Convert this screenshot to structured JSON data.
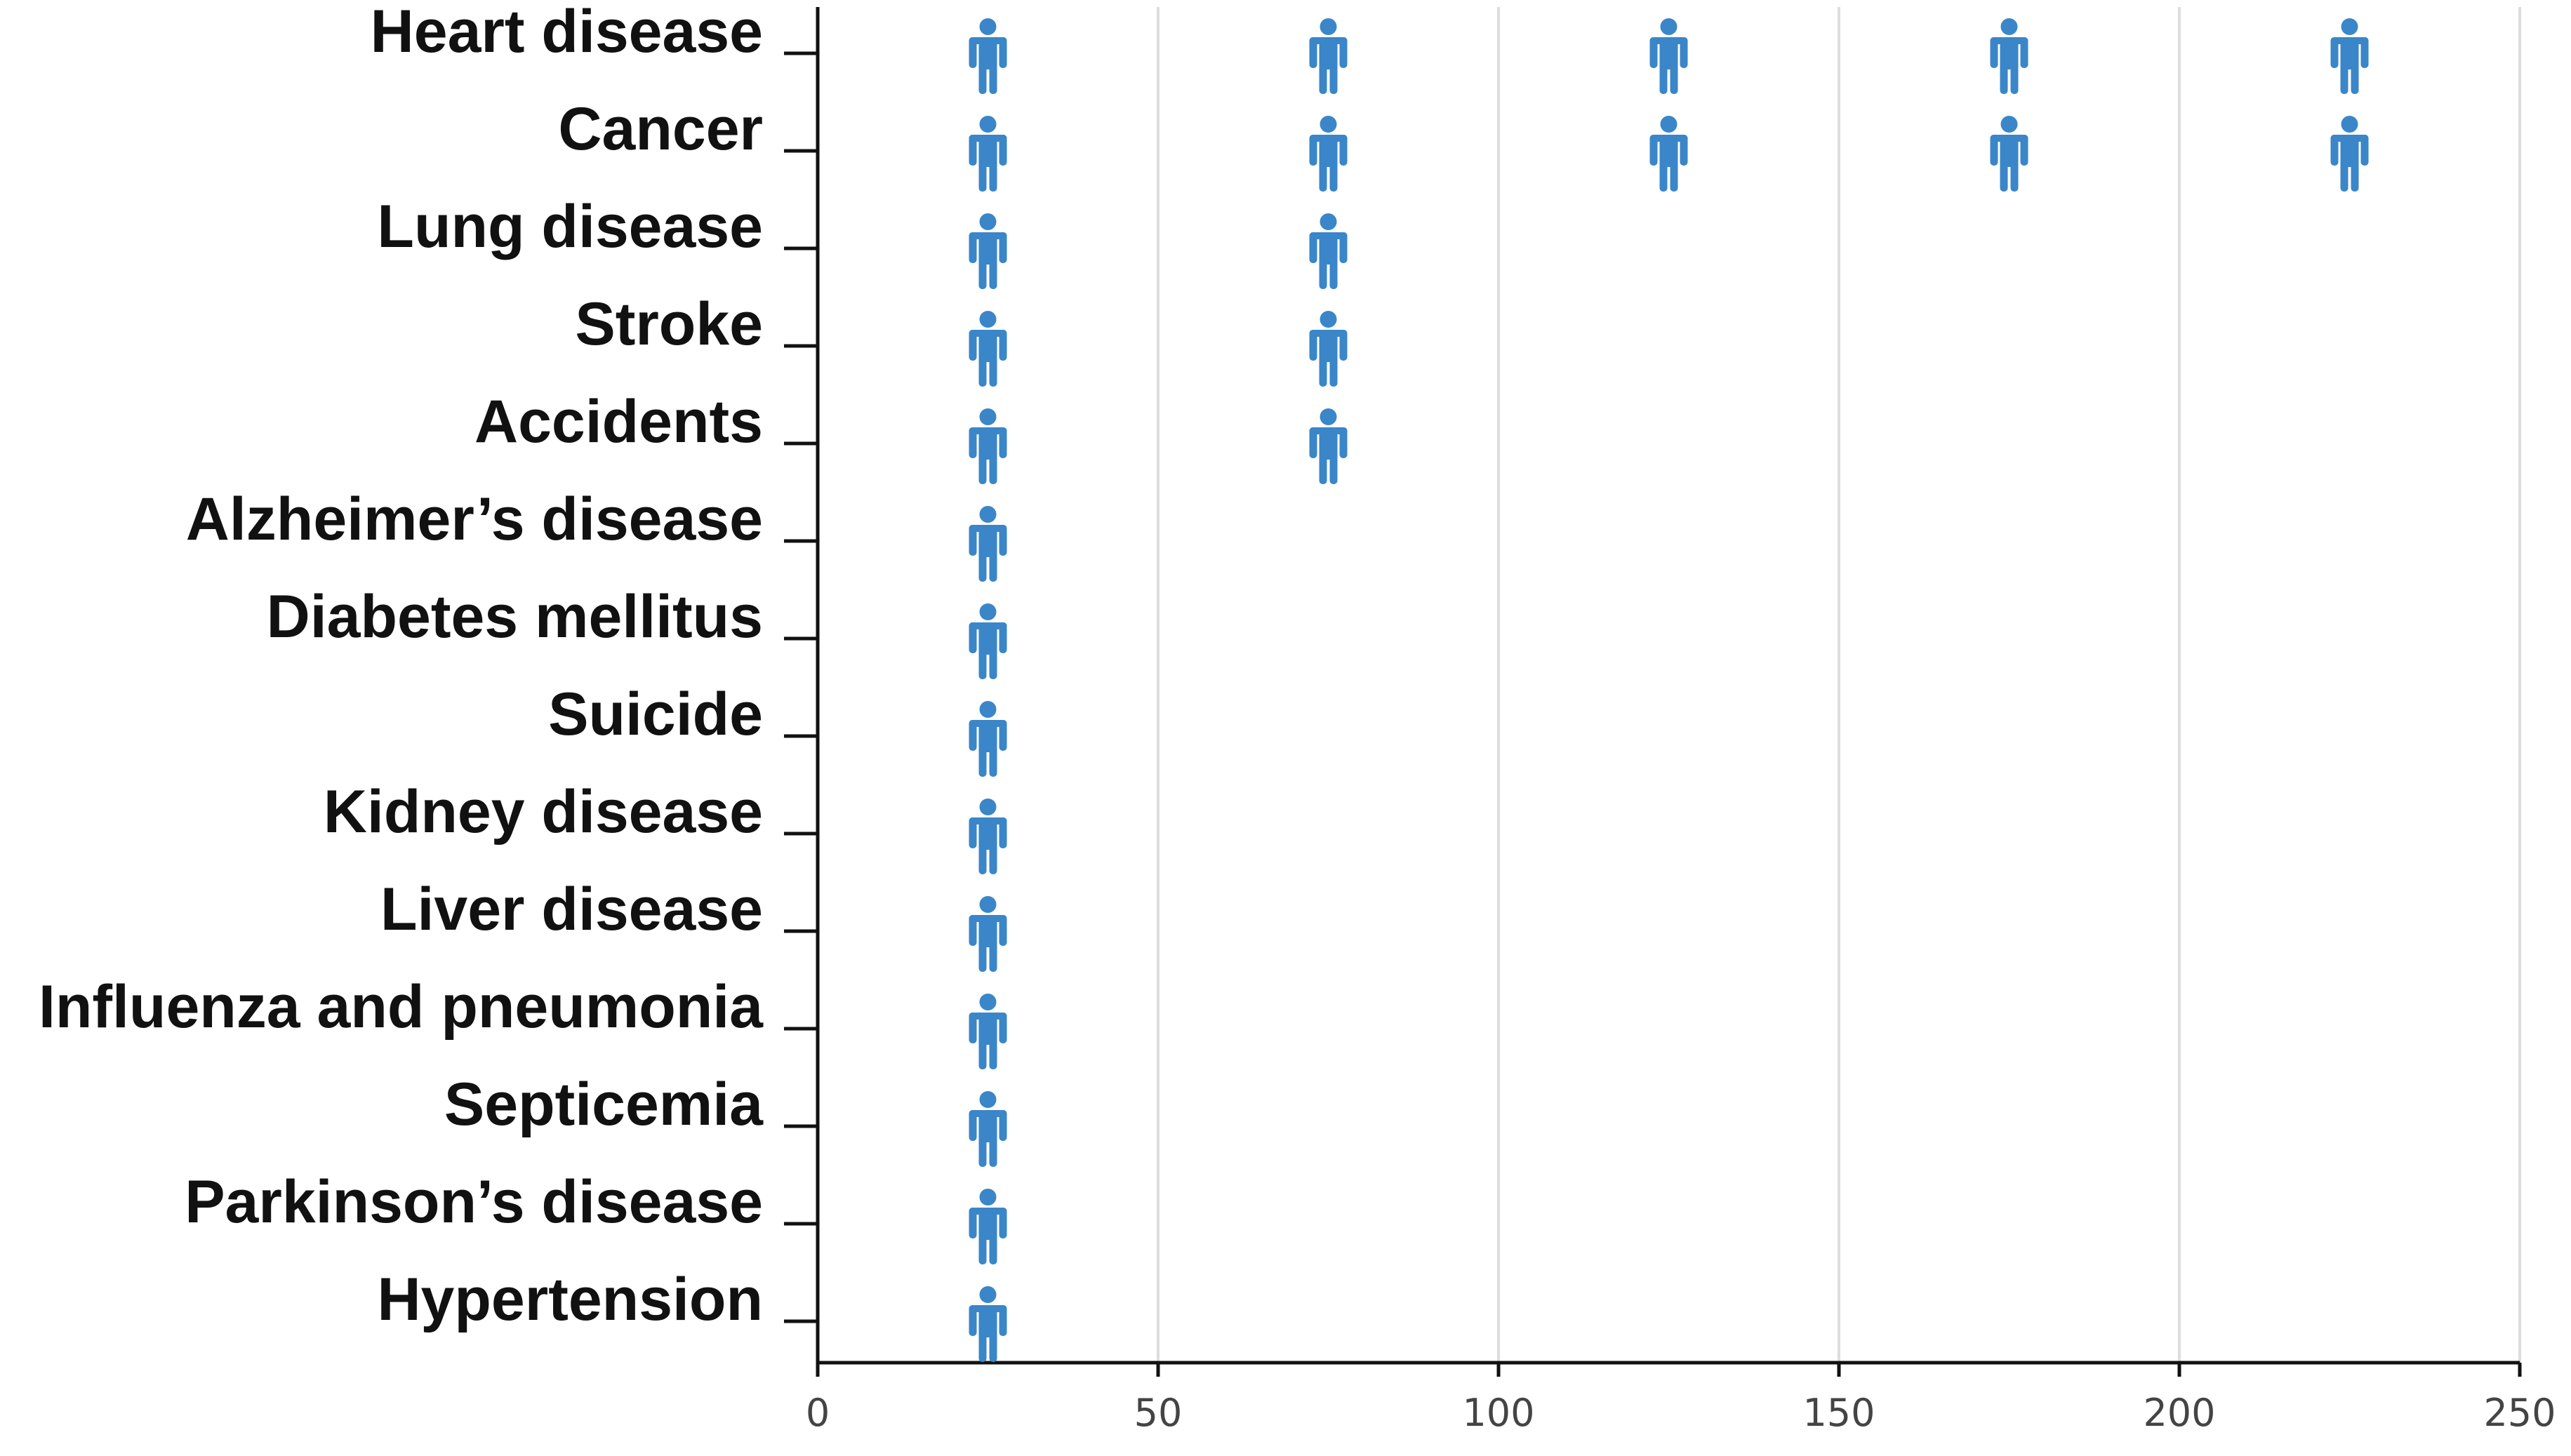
{
  "chart_data": {
    "type": "pictograph",
    "title": "",
    "xlabel": "",
    "ylabel": "",
    "xlim": [
      0,
      250
    ],
    "x_ticks": [
      0,
      50,
      100,
      150,
      200,
      250
    ],
    "grid": "vertical",
    "unit_per_icon": 50,
    "icon": "person-icon",
    "icon_color": "#3a86c8",
    "categories": [
      "Heart disease",
      "Cancer",
      "Lung disease",
      "Stroke",
      "Accidents",
      "Alzheimer’s disease",
      "Diabetes mellitus",
      "Suicide",
      "Kidney disease",
      "Liver disease",
      "Influenza and pneumonia",
      "Septicemia",
      "Parkinson’s disease",
      "Hypertension"
    ],
    "icon_counts": [
      5,
      5,
      2,
      2,
      2,
      1,
      1,
      1,
      1,
      1,
      1,
      1,
      1,
      1
    ]
  }
}
